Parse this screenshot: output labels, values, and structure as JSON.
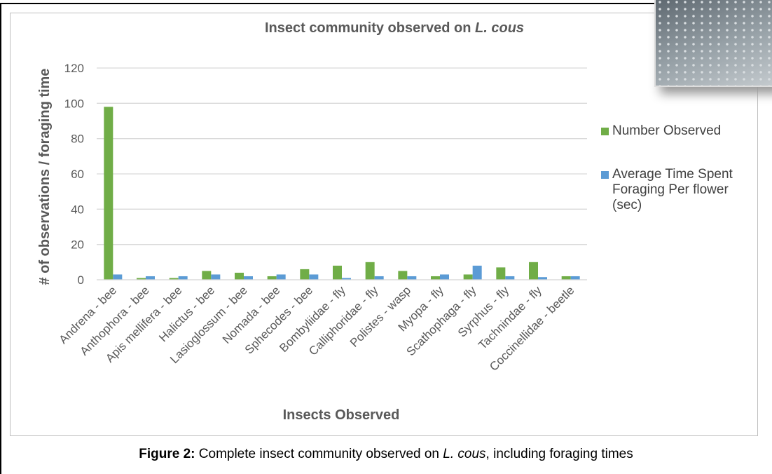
{
  "chart_data": {
    "type": "bar",
    "title": [
      "Insect community observed on ",
      "L. cous"
    ],
    "x_label": "Insects Observed",
    "y_label": "# of observations / foraging time",
    "categories": [
      "Andrena - bee",
      "Anthophora - bee",
      "Apis mellifera - bee",
      "Halictus - bee",
      "Lasioglossum - bee",
      "Nomada - bee",
      "Sphecodes - bee",
      "Bombyliidae - fly",
      "Calliphoridae - fly",
      "Polistes - wasp",
      "Myopa - fly",
      "Scathophaga - fly",
      "Syrphus - fly",
      "Tachnindae - fly",
      "Coccinellidae - beetle"
    ],
    "series": [
      {
        "name": "Number Observed",
        "color": "#70ad47",
        "values": [
          98,
          1,
          1,
          5,
          4,
          2,
          6,
          8,
          10,
          5,
          2,
          3,
          7,
          10,
          2
        ]
      },
      {
        "name": "Average Time Spent Foraging Per flower (sec)",
        "color": "#5b9bd5",
        "values": [
          3,
          2,
          2,
          3,
          2,
          3,
          3,
          1,
          2,
          2,
          3,
          8,
          2,
          1.5,
          2
        ]
      }
    ],
    "ylim": [
      0,
      120
    ],
    "yticks": [
      0,
      20,
      40,
      60,
      80,
      100,
      120
    ],
    "grid": true,
    "legend": "right"
  },
  "caption": {
    "label": "Figure 2:",
    "text": [
      " Complete insect community observed on ",
      "L. cous",
      ", including foraging times"
    ]
  }
}
